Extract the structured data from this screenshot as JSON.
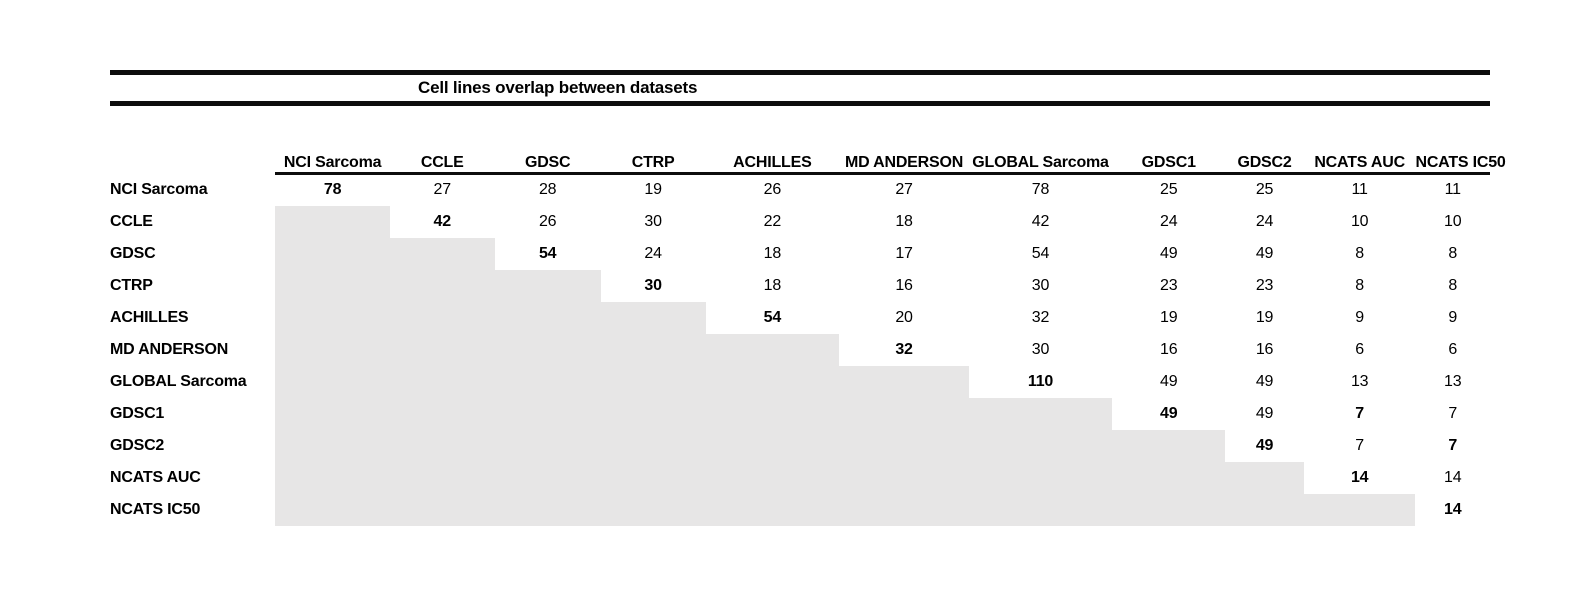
{
  "title": "Cell lines overlap between datasets",
  "table": {
    "datasets": [
      "NCI Sarcoma",
      "CCLE",
      "GDSC",
      "CTRP",
      "ACHILLES",
      "MD ANDERSON",
      "GLOBAL Sarcoma",
      "GDSC1",
      "GDSC2",
      "NCATS AUC",
      "NCATS IC50"
    ],
    "matrix": [
      [
        78,
        27,
        28,
        19,
        26,
        27,
        78,
        25,
        25,
        11,
        11
      ],
      [
        null,
        42,
        26,
        30,
        22,
        18,
        42,
        24,
        24,
        10,
        10
      ],
      [
        null,
        null,
        54,
        24,
        18,
        17,
        54,
        49,
        49,
        8,
        8
      ],
      [
        null,
        null,
        null,
        30,
        18,
        16,
        30,
        23,
        23,
        8,
        8
      ],
      [
        null,
        null,
        null,
        null,
        54,
        20,
        32,
        19,
        19,
        9,
        9
      ],
      [
        null,
        null,
        null,
        null,
        null,
        32,
        30,
        16,
        16,
        6,
        6
      ],
      [
        null,
        null,
        null,
        null,
        null,
        null,
        110,
        49,
        49,
        13,
        13
      ],
      [
        null,
        null,
        null,
        null,
        null,
        null,
        null,
        49,
        49,
        7,
        7
      ],
      [
        null,
        null,
        null,
        null,
        null,
        null,
        null,
        null,
        49,
        7,
        7
      ],
      [
        null,
        null,
        null,
        null,
        null,
        null,
        null,
        null,
        null,
        14,
        14
      ],
      [
        null,
        null,
        null,
        null,
        null,
        null,
        null,
        null,
        null,
        null,
        14
      ]
    ],
    "bold_cells": [
      [
        0,
        0
      ],
      [
        1,
        1
      ],
      [
        2,
        2
      ],
      [
        3,
        3
      ],
      [
        4,
        4
      ],
      [
        5,
        5
      ],
      [
        6,
        6
      ],
      [
        7,
        7
      ],
      [
        7,
        9
      ],
      [
        8,
        8
      ],
      [
        8,
        10
      ],
      [
        9,
        9
      ],
      [
        10,
        10
      ]
    ]
  },
  "colors": {
    "rule": "#0d0d0d",
    "text": "#000000",
    "empty_cell": "#e7e6e6",
    "background": "#ffffff"
  }
}
